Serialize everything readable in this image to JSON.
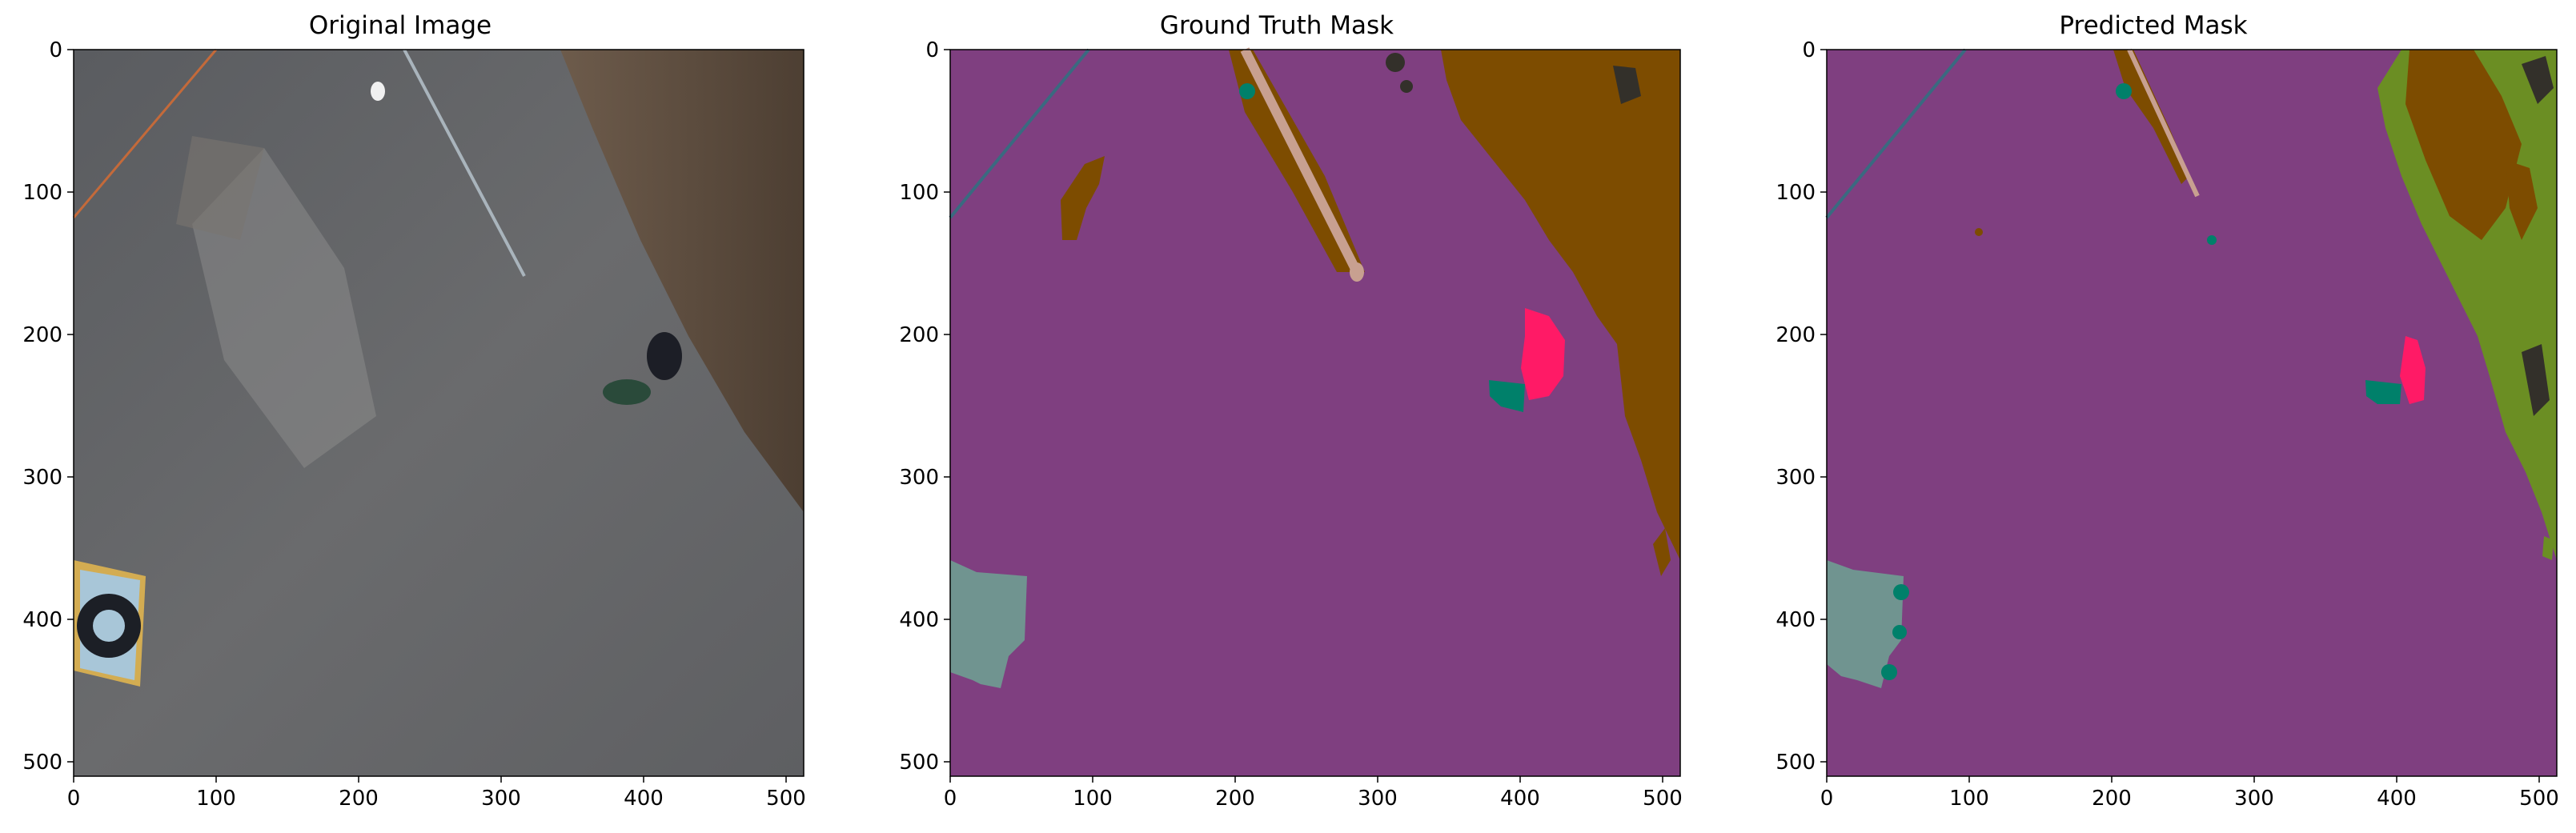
{
  "panels": [
    {
      "id": "original",
      "title": "Original Image",
      "xticks": [
        "0",
        "100",
        "200",
        "300",
        "400",
        "500"
      ],
      "yticks": [
        "0",
        "100",
        "200",
        "300",
        "400",
        "500"
      ]
    },
    {
      "id": "ground-truth",
      "title": "Ground Truth Mask",
      "xticks": [
        "0",
        "100",
        "200",
        "300",
        "400",
        "500"
      ],
      "yticks": [
        "0",
        "100",
        "200",
        "300",
        "400",
        "500"
      ]
    },
    {
      "id": "predicted",
      "title": "Predicted Mask",
      "xticks": [
        "0",
        "100",
        "200",
        "300",
        "400",
        "500"
      ],
      "yticks": [
        "0",
        "100",
        "200",
        "300",
        "400",
        "500"
      ]
    }
  ],
  "image_extent": {
    "x": [
      0,
      512
    ],
    "y": [
      0,
      512
    ]
  },
  "colors": {
    "background_class": "#7f3f80",
    "vegetation_brown": "#7d4c00",
    "vegetation_green": "#6b8e23",
    "person": "#ff1a66",
    "obstacle_teal": "#00806a",
    "landing_pad": "#709490",
    "pole": "#c8a090",
    "dark_object": "#33302a",
    "wire": "#3a6a80"
  }
}
